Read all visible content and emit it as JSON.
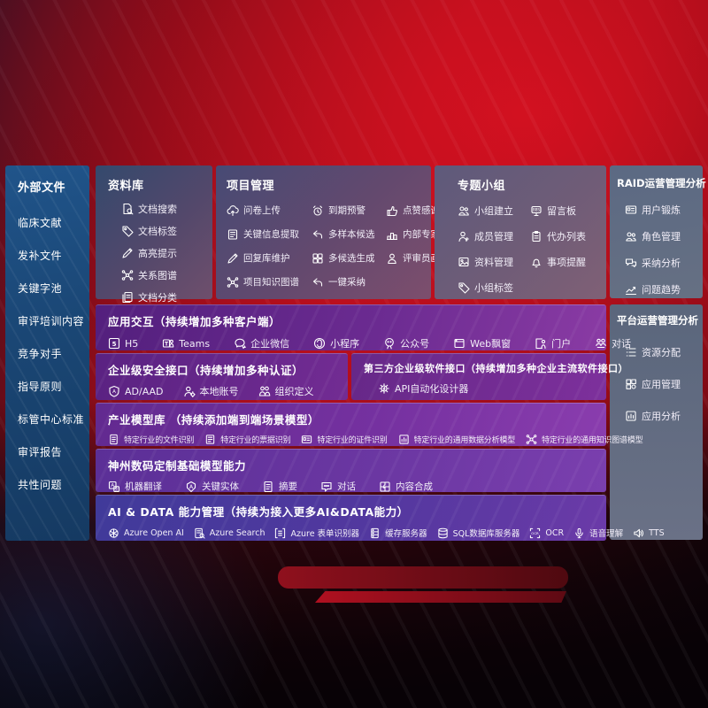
{
  "colors": {
    "background_red": "#c11120",
    "sidebar_blue": "#1d4f84",
    "panel_slate": "#5e6b85",
    "row_purple": "#6b2b90",
    "text": "#ffffff"
  },
  "sidebar": {
    "title": "外部文件",
    "items": [
      {
        "label": "临床文献"
      },
      {
        "label": "发补文件"
      },
      {
        "label": "关键字池"
      },
      {
        "label": "审评培训内容"
      },
      {
        "label": "竞争对手"
      },
      {
        "label": "指导原则"
      },
      {
        "label": "标管中心标准"
      },
      {
        "label": "审评报告"
      },
      {
        "label": "共性问题"
      }
    ]
  },
  "library": {
    "title": "资料库",
    "items": [
      {
        "icon": "doc-search",
        "label": "文档搜索"
      },
      {
        "icon": "tag",
        "label": "文档标签"
      },
      {
        "icon": "pen",
        "label": "高亮提示"
      },
      {
        "icon": "network",
        "label": "关系图谱"
      },
      {
        "icon": "doc-stack",
        "label": "文档分类"
      }
    ]
  },
  "project": {
    "title": "项目管理",
    "items": [
      {
        "icon": "cloud-up",
        "label": "问卷上传"
      },
      {
        "icon": "alarm",
        "label": "到期预警"
      },
      {
        "icon": "thumb",
        "label": "点赞感谢"
      },
      {
        "icon": "doc-extract",
        "label": "关键信息提取"
      },
      {
        "icon": "reply",
        "label": "多样本候选"
      },
      {
        "icon": "rank",
        "label": "内部专家排名"
      },
      {
        "icon": "pen",
        "label": "回复库维护"
      },
      {
        "icon": "grid-gen",
        "label": "多候选生成"
      },
      {
        "icon": "person",
        "label": "评审员画像"
      },
      {
        "icon": "network",
        "label": "项目知识图谱"
      },
      {
        "icon": "reply",
        "label": "一键采纳"
      }
    ]
  },
  "groups": {
    "title": "专题小组",
    "items": [
      {
        "icon": "people",
        "label": "小组建立"
      },
      {
        "icon": "bbs",
        "label": "留言板"
      },
      {
        "icon": "person-plus",
        "label": "成员管理"
      },
      {
        "icon": "clipboard",
        "label": "代办列表"
      },
      {
        "icon": "image",
        "label": "资料管理"
      },
      {
        "icon": "bell",
        "label": "事项提醒"
      },
      {
        "icon": "tag",
        "label": "小组标签"
      }
    ]
  },
  "raid": {
    "title": "RAID运营管理分析",
    "items": [
      {
        "icon": "id-card",
        "label": "用户锻炼"
      },
      {
        "icon": "people",
        "label": "角色管理"
      },
      {
        "icon": "qa",
        "label": "采纳分析"
      },
      {
        "icon": "trend",
        "label": "问题趋势"
      }
    ]
  },
  "platform": {
    "title": "平台运营管理分析",
    "items": [
      {
        "icon": "list",
        "label": "资源分配"
      },
      {
        "icon": "apps",
        "label": "应用管理"
      },
      {
        "icon": "frame-chart",
        "label": "应用分析"
      }
    ]
  },
  "interact": {
    "title": "应用交互（持续增加多种客户端）",
    "items": [
      {
        "icon": "h5",
        "label": "H5"
      },
      {
        "icon": "teams",
        "label": "Teams"
      },
      {
        "icon": "wechat-work",
        "label": "企业微信"
      },
      {
        "icon": "miniapp",
        "label": "小程序"
      },
      {
        "icon": "pub-account",
        "label": "公众号"
      },
      {
        "icon": "window",
        "label": "Web飘窗"
      },
      {
        "icon": "portal",
        "label": "门户"
      },
      {
        "icon": "chat-people",
        "label": "对话"
      }
    ]
  },
  "security": {
    "title": "企业级安全接口（持续增加多种认证）",
    "items": [
      {
        "icon": "shield-ad",
        "label": "AD/AAD"
      },
      {
        "icon": "person-gear",
        "label": "本地账号"
      },
      {
        "icon": "org",
        "label": "组织定义"
      }
    ]
  },
  "thirdparty": {
    "title": "第三方企业级软件接口（持续增加多种企业主流软件接口）",
    "items": [
      {
        "icon": "gear-bolt",
        "label": "API自动化设计器"
      }
    ]
  },
  "industry": {
    "title": "产业模型库 （持续添加端到端场景模型）",
    "items": [
      {
        "icon": "doc",
        "label": "特定行业的文件识别"
      },
      {
        "icon": "doc-extract",
        "label": "特定行业的票据识别"
      },
      {
        "icon": "id-card",
        "label": "特定行业的证件识别"
      },
      {
        "icon": "frame-chart",
        "label": "特定行业的通用数据分析模型"
      },
      {
        "icon": "network",
        "label": "特定行业的通用知识图谱模型"
      }
    ]
  },
  "basemodel": {
    "title": "神州数码定制基础模型能力",
    "items": [
      {
        "icon": "translate",
        "label": "机器翻译"
      },
      {
        "icon": "entity-a",
        "label": "关键实体"
      },
      {
        "icon": "doc",
        "label": "摘要"
      },
      {
        "icon": "chat",
        "label": "对话"
      },
      {
        "icon": "puzzle",
        "label": "内容合成"
      }
    ]
  },
  "aidata": {
    "title": "AI & DATA 能力管理（持续为接入更多AI&DATA能力）",
    "items": [
      {
        "icon": "openai",
        "label": "Azure Open AI"
      },
      {
        "icon": "az-search",
        "label": "Azure Search"
      },
      {
        "icon": "form-brackets",
        "label": "Azure 表单识别器"
      },
      {
        "icon": "server",
        "label": "缓存服务器"
      },
      {
        "icon": "sql-db",
        "label": "SQL数据库服务器"
      },
      {
        "icon": "ocr",
        "label": "OCR"
      },
      {
        "icon": "voice",
        "label": "语音理解"
      },
      {
        "icon": "tts",
        "label": "TTS"
      }
    ]
  }
}
